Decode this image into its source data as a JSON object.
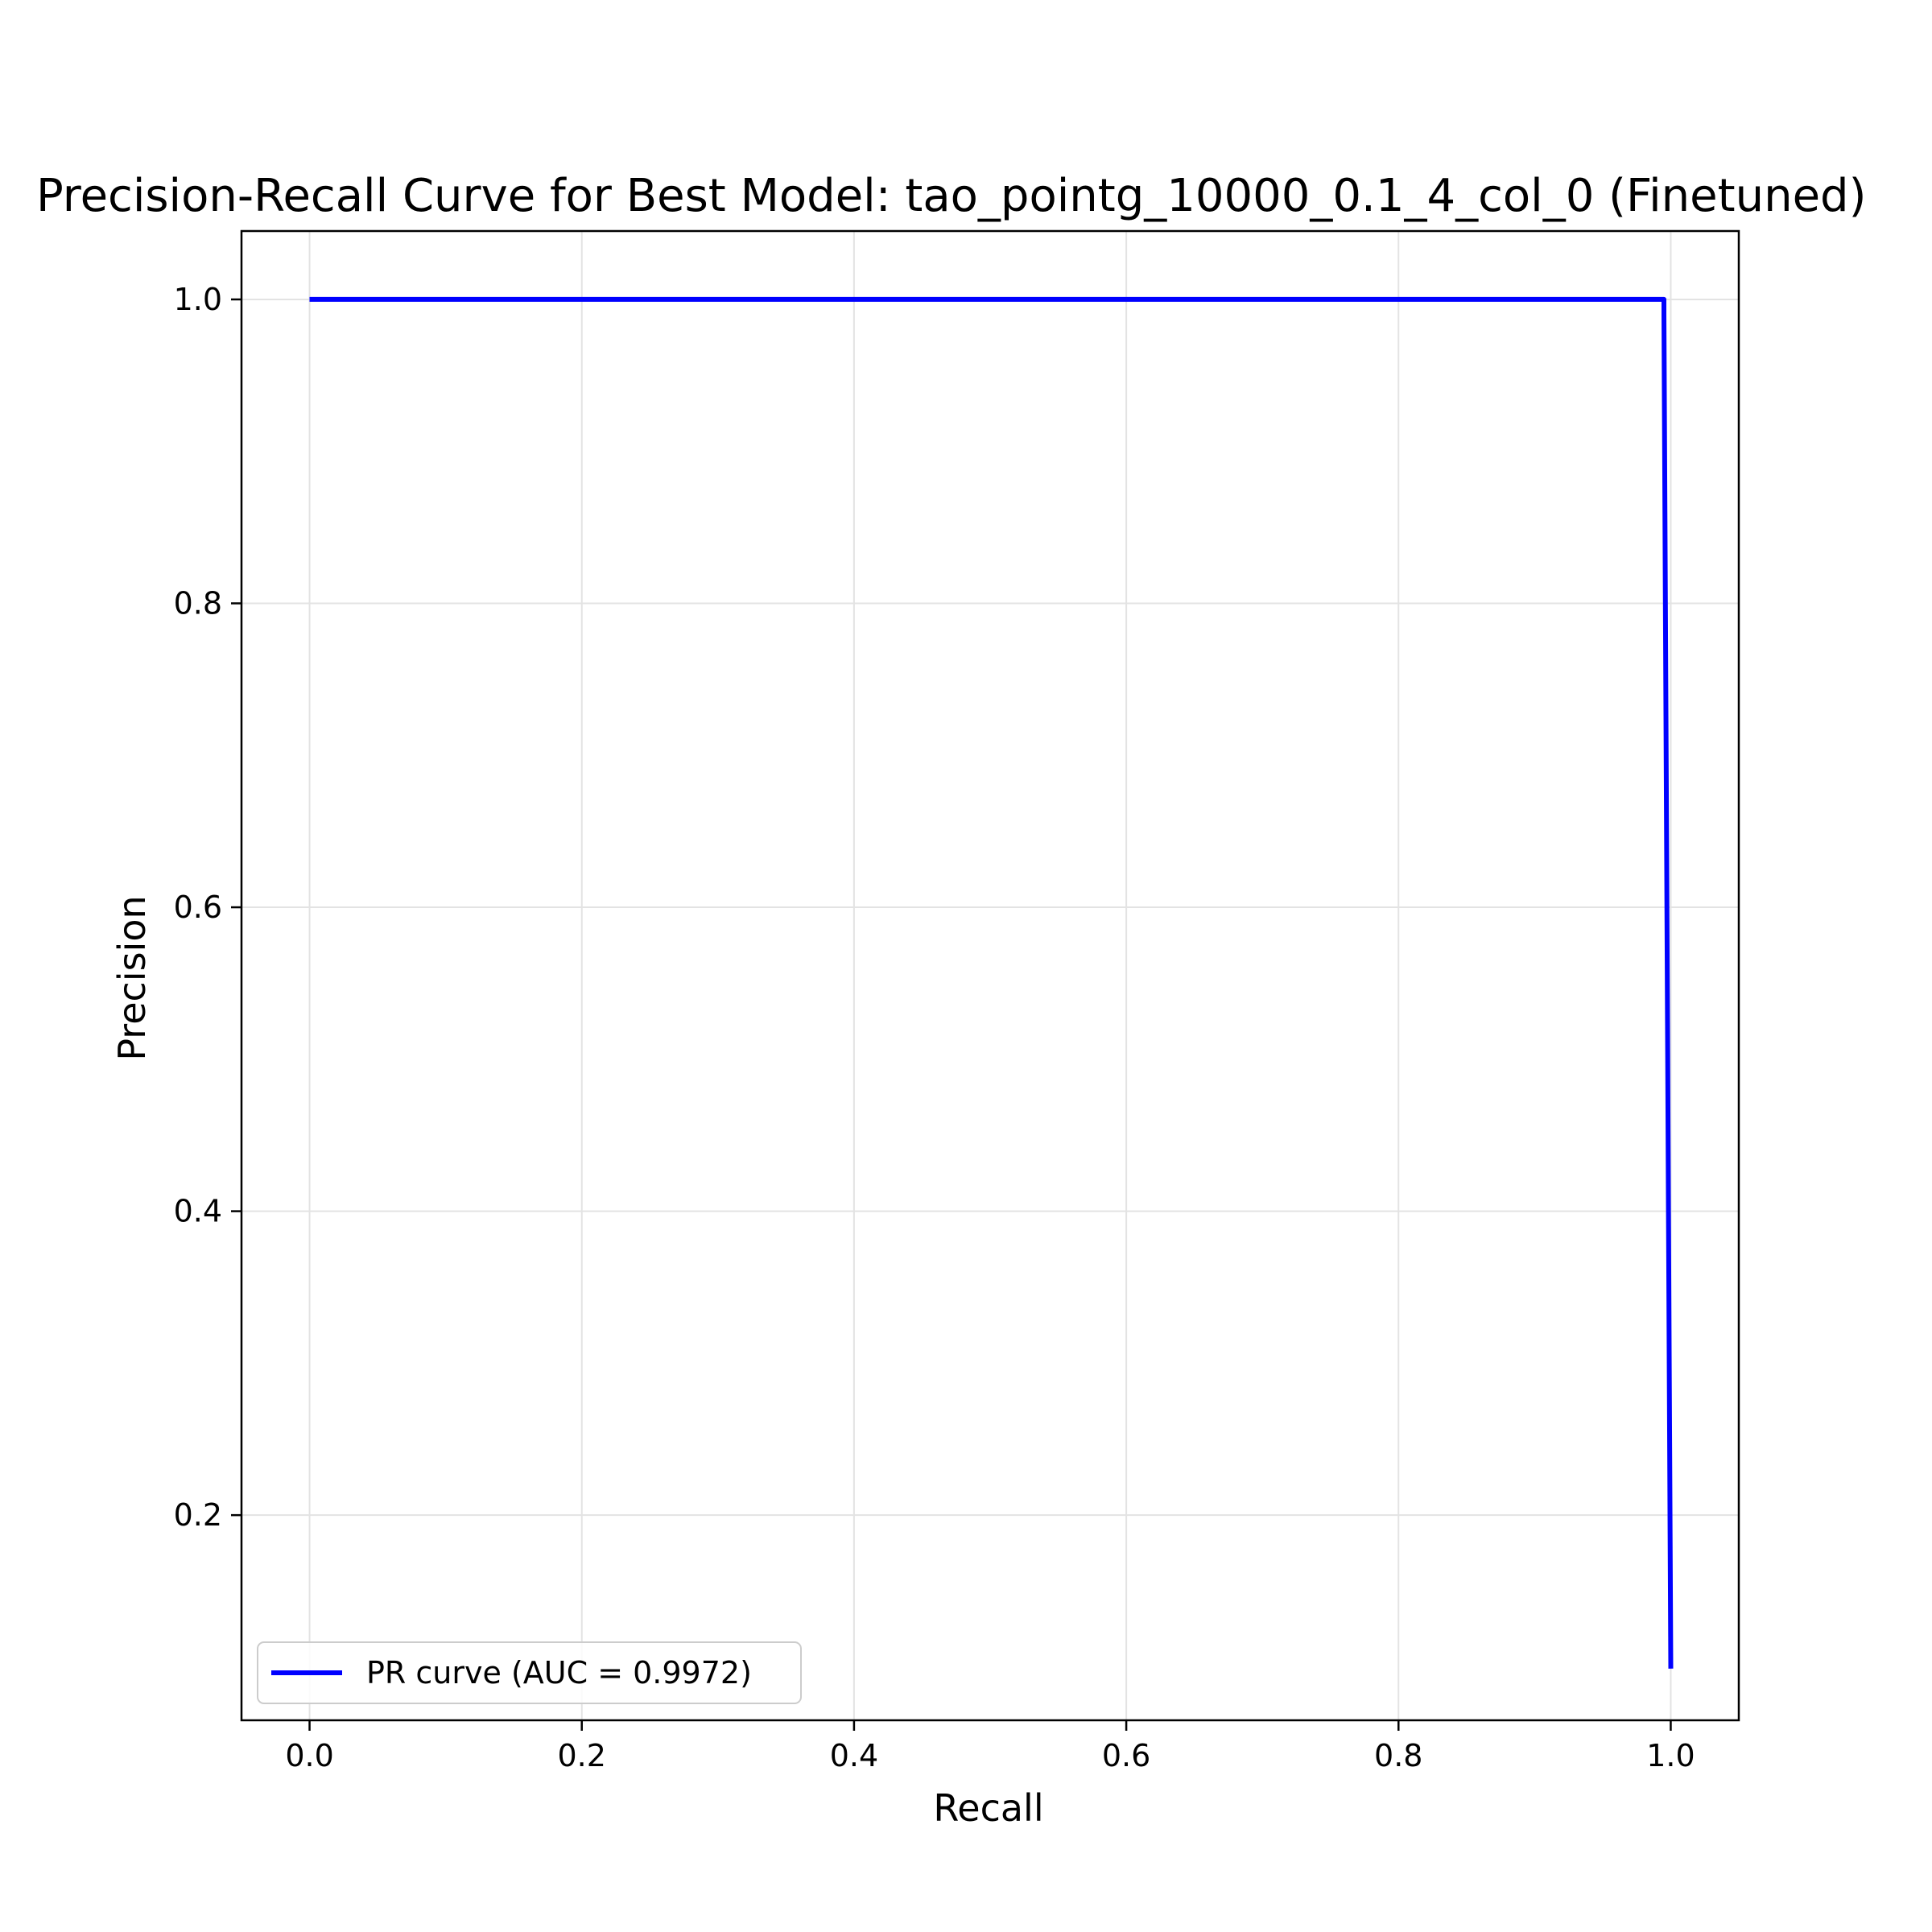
{
  "chart_data": {
    "type": "line",
    "title": "Precision-Recall Curve for Best Model: tao_pointg_10000_0.1_4_col_0 (Finetuned)",
    "xlabel": "Recall",
    "ylabel": "Precision",
    "xlim": [
      -0.05,
      1.05
    ],
    "ylim": [
      0.065,
      1.045
    ],
    "xticks": [
      0.0,
      0.2,
      0.4,
      0.6,
      0.8,
      1.0
    ],
    "xtick_labels": [
      "0.0",
      "0.2",
      "0.4",
      "0.6",
      "0.8",
      "1.0"
    ],
    "yticks": [
      0.2,
      0.4,
      0.6,
      0.8,
      1.0
    ],
    "ytick_labels": [
      "0.2",
      "0.4",
      "0.6",
      "0.8",
      "1.0"
    ],
    "grid": true,
    "legend_position": "lower-left",
    "series": [
      {
        "name": "PR curve (AUC = 0.9972)",
        "color": "#0000ff",
        "x": [
          0.0,
          0.995,
          0.995,
          1.0
        ],
        "y": [
          1.0,
          1.0,
          0.99,
          0.099
        ]
      }
    ]
  }
}
